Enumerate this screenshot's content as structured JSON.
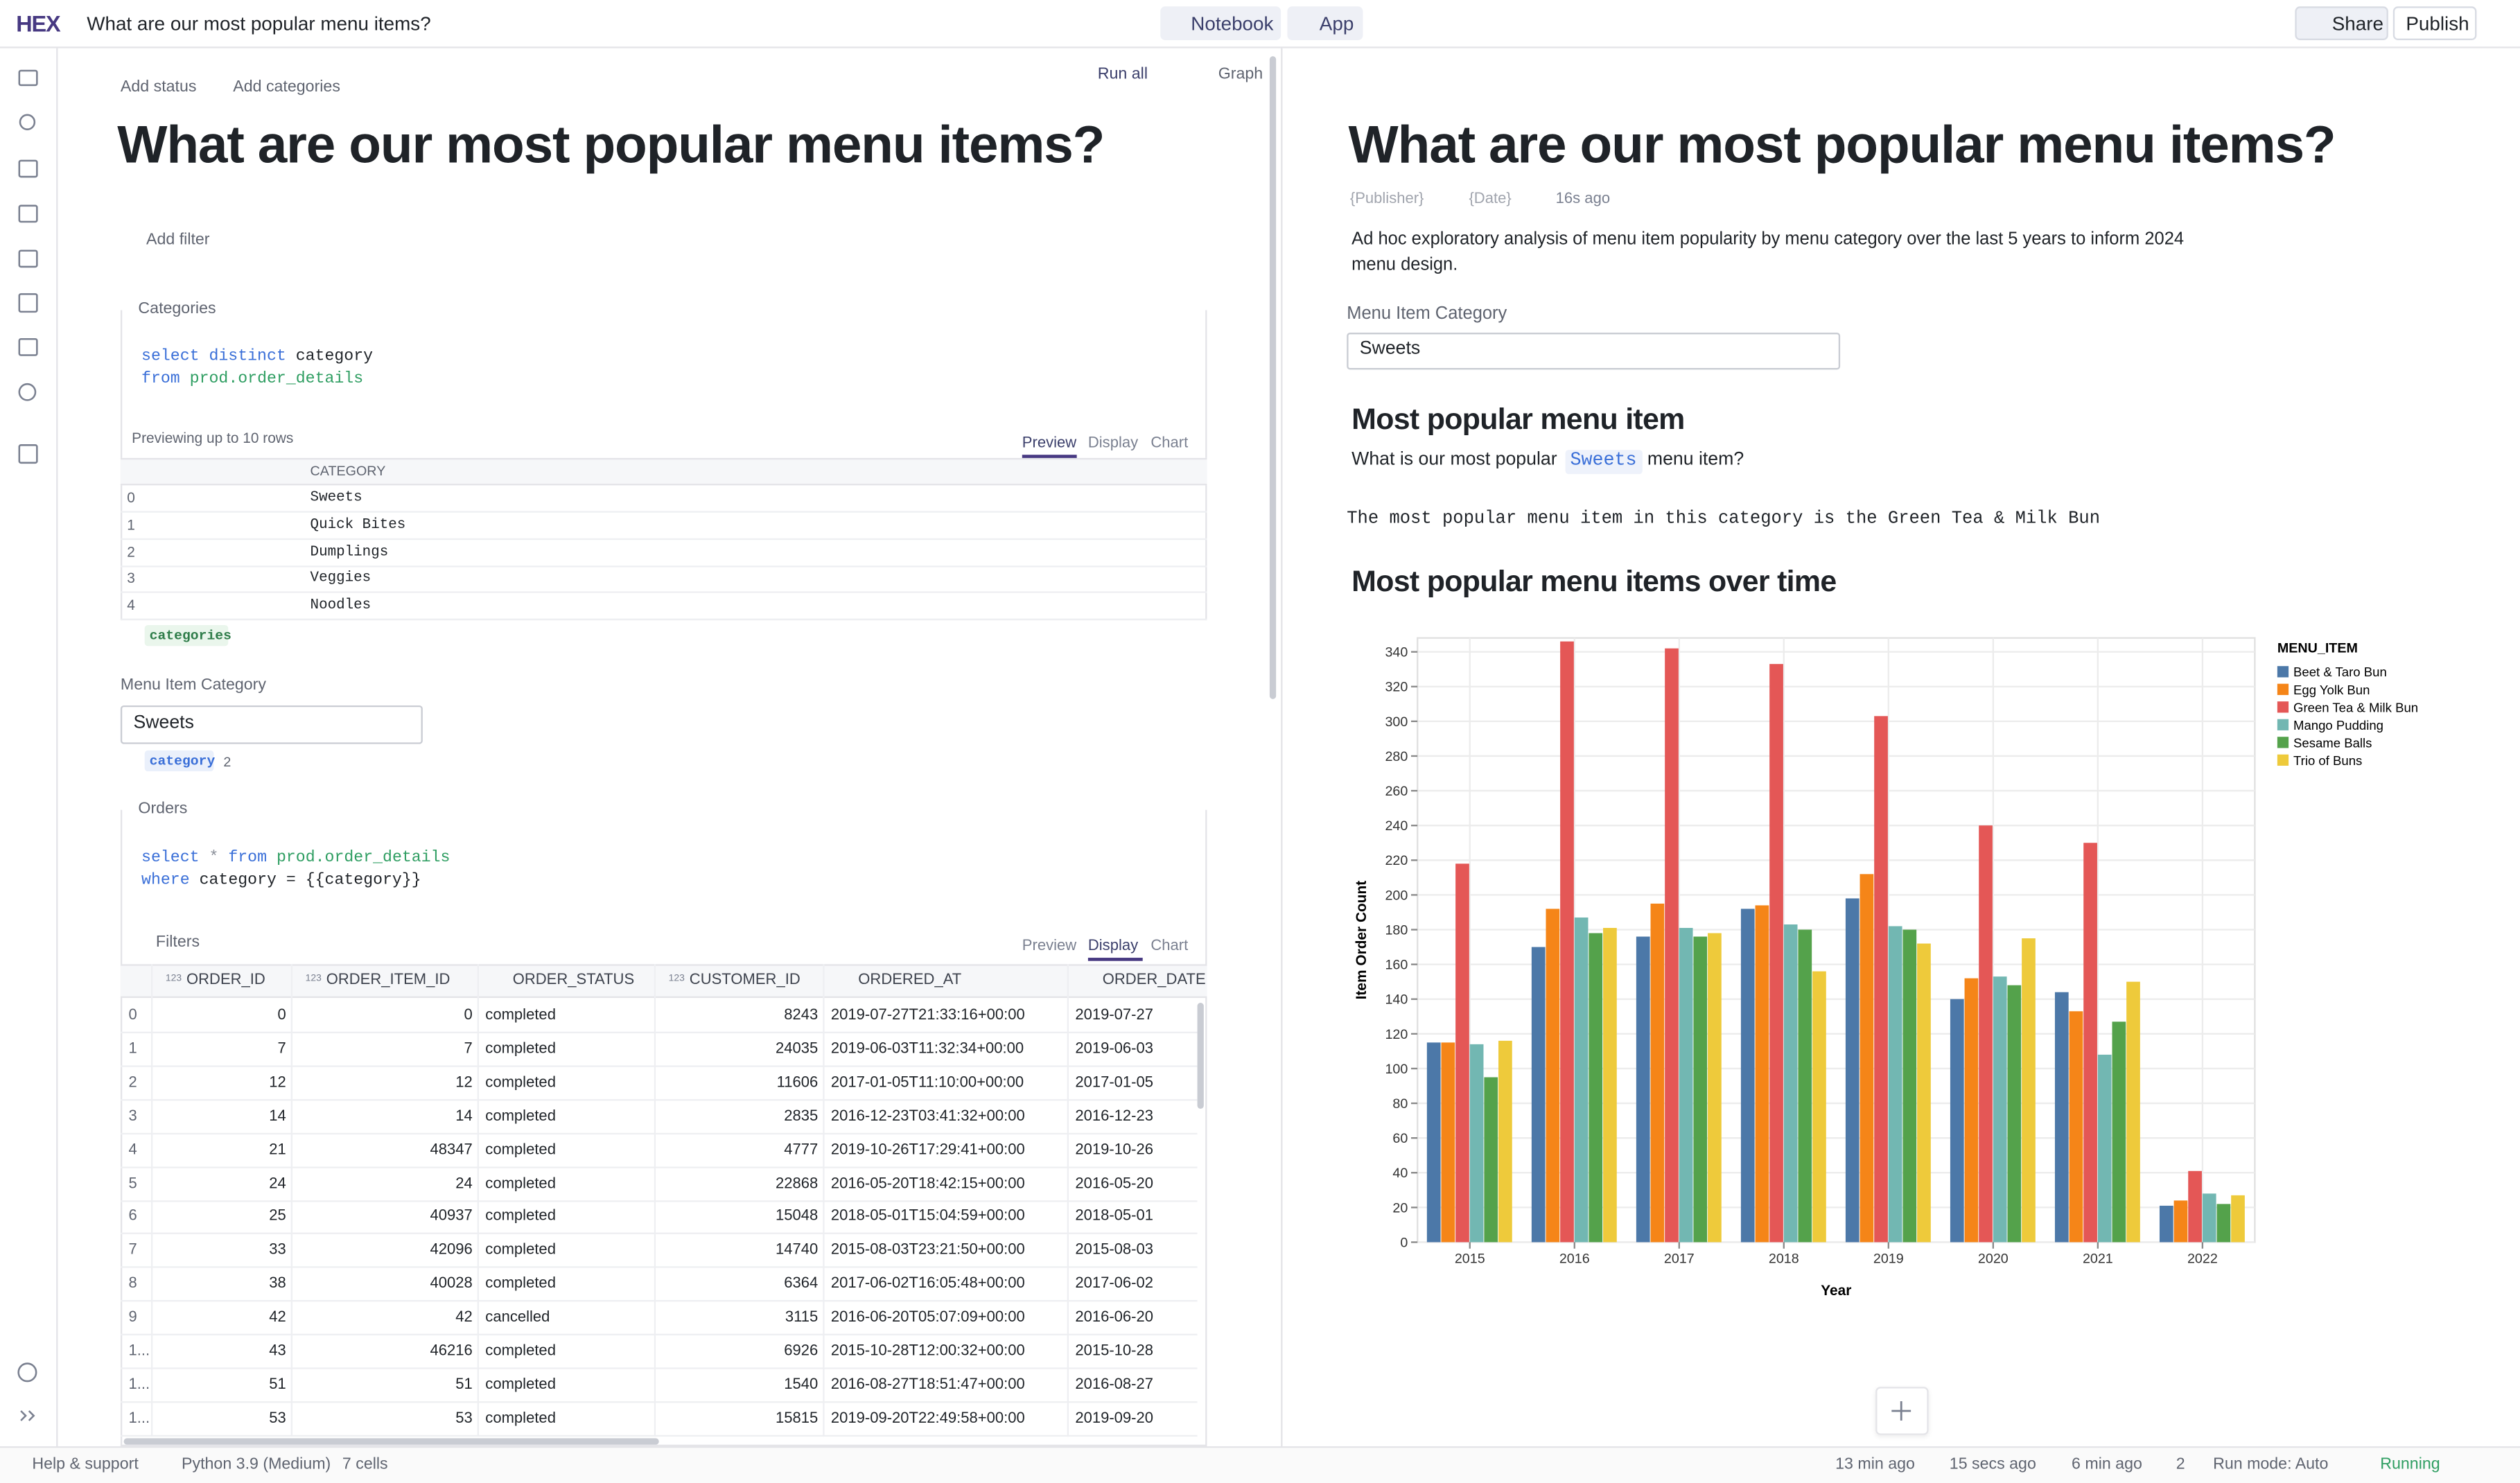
{
  "header": {
    "logo": "HEX",
    "title": "What are our most popular menu items?",
    "tabs": [
      "Notebook",
      "App"
    ],
    "share": "Share",
    "publish": "Publish"
  },
  "notebook": {
    "add_status": "Add status",
    "add_categories": "Add categories",
    "run_all": "Run all",
    "graph": "Graph",
    "title": "What are our most popular menu items?",
    "add_filter": "Add filter",
    "categories_cell": {
      "name": "Categories",
      "code": [
        [
          "select distinct",
          "category"
        ],
        [
          "from",
          "prod.order_details"
        ]
      ],
      "preview_note": "Previewing up to 10 rows",
      "tabs": [
        "Preview",
        "Display",
        "Chart"
      ],
      "active_tab": 0,
      "columns": [
        "CATEGORY"
      ],
      "rows": [
        [
          "0",
          "Sweets"
        ],
        [
          "1",
          "Quick Bites"
        ],
        [
          "2",
          "Dumplings"
        ],
        [
          "3",
          "Veggies"
        ],
        [
          "4",
          "Noodles"
        ]
      ],
      "output": "categories"
    },
    "input": {
      "label": "Menu Item Category",
      "value": "Sweets",
      "output": "category",
      "output_count": "2"
    },
    "orders_cell": {
      "name": "Orders",
      "code": [
        [
          "select",
          "*",
          "from",
          "prod.order_details"
        ],
        [
          "where",
          "category",
          "=",
          "{{category}}"
        ]
      ],
      "filters": "Filters",
      "tabs": [
        "Preview",
        "Display",
        "Chart"
      ],
      "active_tab": 1,
      "numeric_marker": "123",
      "numeric_columns": [
        0,
        1,
        3
      ],
      "columns": [
        "ORDER_ID",
        "ORDER_ITEM_ID",
        "ORDER_STATUS",
        "CUSTOMER_ID",
        "ORDERED_AT",
        "ORDER_DATE"
      ],
      "rows": [
        [
          "0",
          "0",
          "0",
          "completed",
          "8243",
          "2019-07-27T21:33:16+00:00",
          "2019-07-27"
        ],
        [
          "1",
          "7",
          "7",
          "completed",
          "24035",
          "2019-06-03T11:32:34+00:00",
          "2019-06-03"
        ],
        [
          "2",
          "12",
          "12",
          "completed",
          "11606",
          "2017-01-05T11:10:00+00:00",
          "2017-01-05"
        ],
        [
          "3",
          "14",
          "14",
          "completed",
          "2835",
          "2016-12-23T03:41:32+00:00",
          "2016-12-23"
        ],
        [
          "4",
          "21",
          "48347",
          "completed",
          "4777",
          "2019-10-26T17:29:41+00:00",
          "2019-10-26"
        ],
        [
          "5",
          "24",
          "24",
          "completed",
          "22868",
          "2016-05-20T18:42:15+00:00",
          "2016-05-20"
        ],
        [
          "6",
          "25",
          "40937",
          "completed",
          "15048",
          "2018-05-01T15:04:59+00:00",
          "2018-05-01"
        ],
        [
          "7",
          "33",
          "42096",
          "completed",
          "14740",
          "2015-08-03T23:21:50+00:00",
          "2015-08-03"
        ],
        [
          "8",
          "38",
          "40028",
          "completed",
          "6364",
          "2017-06-02T16:05:48+00:00",
          "2017-06-02"
        ],
        [
          "9",
          "42",
          "42",
          "cancelled",
          "3115",
          "2016-06-20T05:07:09+00:00",
          "2016-06-20"
        ],
        [
          "1...",
          "43",
          "46216",
          "completed",
          "6926",
          "2015-10-28T12:00:32+00:00",
          "2015-10-28"
        ],
        [
          "1...",
          "51",
          "51",
          "completed",
          "1540",
          "2016-08-27T18:51:47+00:00",
          "2016-08-27"
        ],
        [
          "1...",
          "53",
          "53",
          "completed",
          "15815",
          "2019-09-20T22:49:58+00:00",
          "2019-09-20"
        ]
      ]
    }
  },
  "app": {
    "title": "What are our most popular menu items?",
    "publisher": "{Publisher}",
    "date": "{Date}",
    "updated": "16s ago",
    "description": "Ad hoc exploratory analysis of menu item popularity by menu category over the last 5 years to inform 2024 menu design.",
    "input_label": "Menu Item Category",
    "input_value": "Sweets",
    "heading_1": "Most popular menu item",
    "question": [
      "What is our most popular",
      "Sweets",
      "menu item?"
    ],
    "answer": "The most popular menu item in this category is the Green Tea & Milk Bun",
    "heading_2": "Most popular menu items over time"
  },
  "chart_data": {
    "type": "bar",
    "x_label": "Year",
    "y_label": "Item Order Count",
    "legend_title": "MENU_ITEM",
    "categories": [
      "2015",
      "2016",
      "2017",
      "2018",
      "2019",
      "2020",
      "2021",
      "2022"
    ],
    "series": [
      {
        "name": "Beet & Taro Bun",
        "color": "#4c78a8",
        "values": [
          115,
          170,
          176,
          192,
          198,
          140,
          144,
          21
        ]
      },
      {
        "name": "Egg Yolk Bun",
        "color": "#f58518",
        "values": [
          115,
          192,
          195,
          194,
          212,
          152,
          133,
          24
        ]
      },
      {
        "name": "Green Tea & Milk Bun",
        "color": "#e45756",
        "values": [
          218,
          346,
          342,
          333,
          303,
          240,
          230,
          41
        ]
      },
      {
        "name": "Mango Pudding",
        "color": "#72b7b2",
        "values": [
          114,
          187,
          181,
          183,
          182,
          153,
          108,
          28
        ]
      },
      {
        "name": "Sesame Balls",
        "color": "#54a24b",
        "values": [
          95,
          178,
          176,
          180,
          180,
          148,
          127,
          22
        ]
      },
      {
        "name": "Trio of Buns",
        "color": "#eeca3b",
        "values": [
          116,
          181,
          178,
          156,
          172,
          175,
          150,
          27
        ]
      }
    ],
    "ylim": [
      0,
      348
    ],
    "yticks": [
      0,
      20,
      40,
      60,
      80,
      100,
      120,
      140,
      160,
      180,
      200,
      220,
      240,
      260,
      280,
      300,
      320,
      340
    ],
    "grid": true,
    "legend": "right"
  },
  "status_bar": {
    "help": "Help & support",
    "kernel": "Python 3.9 (Medium)",
    "cells": "7 cells",
    "edited": "13 min ago",
    "saved": "15 secs ago",
    "published": "6 min ago",
    "branches": "2",
    "run_mode": "Run mode: Auto",
    "state": "Running"
  }
}
